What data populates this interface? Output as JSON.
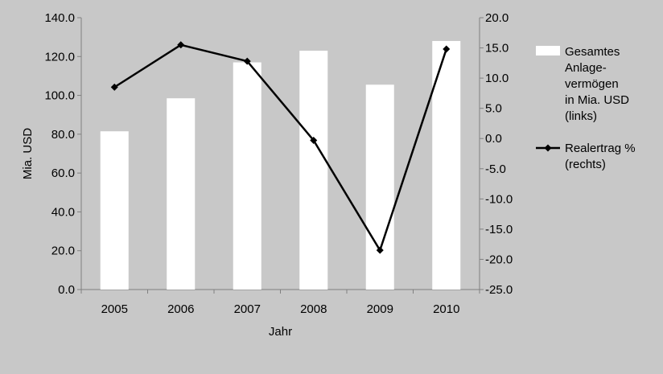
{
  "chart_data": {
    "type": "bar+line",
    "categories": [
      "2005",
      "2006",
      "2007",
      "2008",
      "2009",
      "2010"
    ],
    "xlabel": "Jahr",
    "ylabel": "Mia. USD",
    "ylim_left": [
      0,
      140
    ],
    "ylim_right": [
      -25,
      20
    ],
    "left_ticks": [
      "0.0",
      "20.0",
      "40.0",
      "60.0",
      "80.0",
      "100.0",
      "120.0",
      "140.0"
    ],
    "right_ticks": [
      "-25.0",
      "-20.0",
      "-15.0",
      "-10.0",
      "-5.0",
      "0.0",
      "5.0",
      "10.0",
      "15.0",
      "20.0"
    ],
    "series": [
      {
        "name": "Gesamtes Anlage-vermögen in Mia. USD (links)",
        "legend_lines": [
          "Gesamtes",
          "Anlage-",
          "vermögen",
          "in Mia. USD",
          "(links)"
        ],
        "type": "bar",
        "axis": "left",
        "color": "#ffffff",
        "values": [
          81.5,
          98.5,
          117.0,
          123.0,
          105.5,
          128.0
        ]
      },
      {
        "name": "Realertrag % (rechts)",
        "legend_lines": [
          "Realertrag %",
          "(rechts)"
        ],
        "type": "line",
        "axis": "right",
        "color": "#000000",
        "marker": "diamond",
        "values": [
          8.5,
          15.5,
          12.8,
          -0.3,
          -18.5,
          14.8
        ]
      }
    ],
    "grid": false,
    "legend_position": "right"
  }
}
